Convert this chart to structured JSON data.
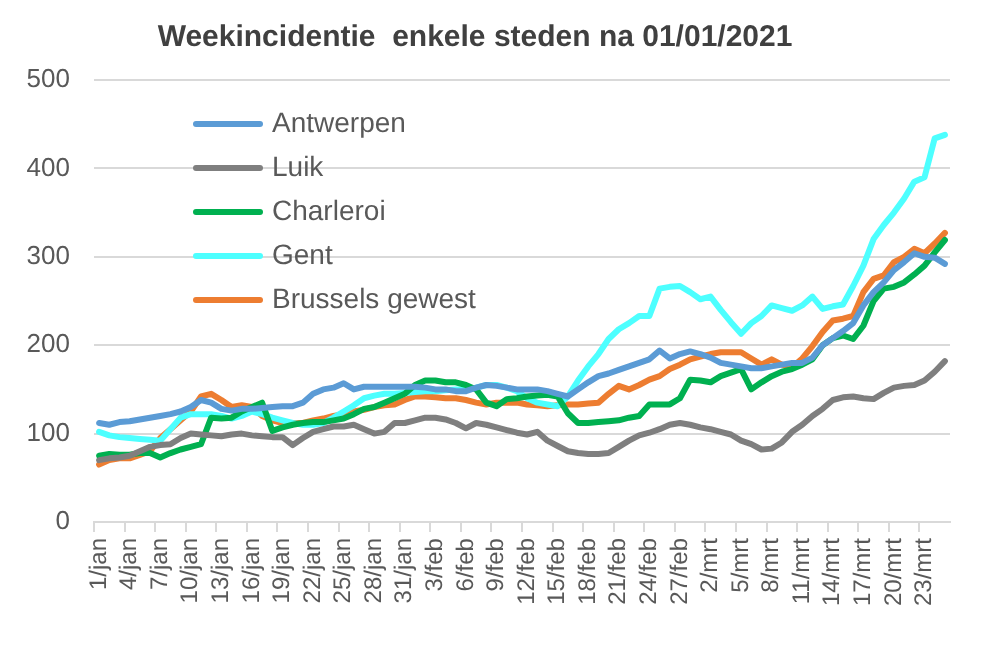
{
  "chart_data": {
    "type": "line",
    "title": "Weekincidentie  enkele steden na 01/01/2021",
    "categories": [
      "1/jan",
      null,
      null,
      "4/jan",
      null,
      null,
      "7/jan",
      null,
      null,
      "10/jan",
      null,
      null,
      "13/jan",
      null,
      null,
      "16/jan",
      null,
      null,
      "19/jan",
      null,
      null,
      "22/jan",
      null,
      null,
      "25/jan",
      null,
      null,
      "28/jan",
      null,
      null,
      "31/jan",
      null,
      null,
      "3/feb",
      null,
      null,
      "6/feb",
      null,
      null,
      "9/feb",
      null,
      null,
      "12/feb",
      null,
      null,
      "15/feb",
      null,
      null,
      "18/feb",
      null,
      null,
      "21/feb",
      null,
      null,
      "24/feb",
      null,
      null,
      "27/feb",
      null,
      null,
      "2/mrt",
      null,
      null,
      "5/mrt",
      null,
      null,
      "8/mrt",
      null,
      null,
      "11/mrt",
      null,
      null,
      "14/mrt",
      null,
      null,
      "17/mrt",
      null,
      null,
      "20/mrt",
      null,
      null,
      "23/mrt",
      null,
      null
    ],
    "series": [
      {
        "name": "Antwerpen",
        "color": "#5b9bd5",
        "values": [
          112,
          110,
          113,
          114,
          116,
          118,
          120,
          122,
          125,
          130,
          138,
          135,
          128,
          126,
          128,
          128,
          129,
          130,
          131,
          131,
          135,
          145,
          150,
          152,
          157,
          150,
          153,
          153,
          153,
          153,
          153,
          153,
          152,
          150,
          150,
          148,
          148,
          152,
          155,
          154,
          152,
          150,
          150,
          150,
          148,
          145,
          142,
          150,
          158,
          165,
          168,
          172,
          176,
          180,
          184,
          194,
          185,
          190,
          193,
          190,
          186,
          180,
          178,
          176,
          174,
          174,
          176,
          178,
          180,
          180,
          186,
          200,
          208,
          216,
          225,
          245,
          260,
          271,
          285,
          294,
          304,
          300,
          299,
          292
        ]
      },
      {
        "name": "Luik",
        "color": "#7f7f7f",
        "values": [
          70,
          72,
          73,
          75,
          80,
          85,
          87,
          88,
          95,
          100,
          99,
          98,
          97,
          99,
          100,
          98,
          97,
          96,
          96,
          87,
          95,
          102,
          105,
          108,
          108,
          110,
          105,
          100,
          102,
          112,
          112,
          115,
          118,
          118,
          116,
          112,
          106,
          112,
          110,
          107,
          104,
          101,
          99,
          102,
          92,
          86,
          80,
          78,
          77,
          77,
          78,
          85,
          92,
          98,
          101,
          105,
          110,
          112,
          110,
          107,
          105,
          102,
          99,
          92,
          88,
          82,
          83,
          90,
          102,
          110,
          120,
          128,
          138,
          141,
          142,
          140,
          139,
          146,
          152,
          154,
          155,
          160,
          170,
          182
        ]
      },
      {
        "name": "Charleroi",
        "color": "#00b050",
        "values": [
          75,
          77,
          76,
          76,
          78,
          78,
          73,
          78,
          82,
          85,
          88,
          118,
          117,
          118,
          125,
          130,
          135,
          103,
          107,
          110,
          112,
          113,
          113,
          115,
          117,
          122,
          128,
          130,
          135,
          140,
          145,
          155,
          160,
          160,
          158,
          158,
          155,
          150,
          135,
          131,
          139,
          140,
          142,
          143,
          144,
          142,
          123,
          112,
          112,
          113,
          114,
          115,
          118,
          120,
          133,
          133,
          133,
          140,
          161,
          160,
          158,
          165,
          169,
          173,
          150,
          158,
          165,
          170,
          173,
          178,
          184,
          200,
          208,
          211,
          207,
          222,
          250,
          264,
          266,
          271,
          280,
          290,
          305,
          319
        ]
      },
      {
        "name": "Gent",
        "color": "#4dffff",
        "values": [
          102,
          98,
          96,
          95,
          94,
          93,
          92,
          105,
          118,
          122,
          122,
          122,
          120,
          117,
          120,
          125,
          122,
          118,
          115,
          112,
          110,
          110,
          112,
          118,
          125,
          132,
          140,
          143,
          145,
          145,
          146,
          147,
          148,
          148,
          149,
          150,
          150,
          152,
          155,
          155,
          152,
          148,
          140,
          135,
          133,
          131,
          142,
          160,
          176,
          190,
          207,
          218,
          225,
          233,
          233,
          264,
          266,
          267,
          260,
          252,
          255,
          240,
          226,
          213,
          225,
          233,
          245,
          242,
          239,
          245,
          255,
          241,
          244,
          246,
          267,
          290,
          320,
          336,
          350,
          366,
          385,
          390,
          434,
          438
        ]
      },
      {
        "name": "Brussels gewest",
        "color": "#ed7d31",
        "values": [
          65,
          70,
          72,
          72,
          76,
          80,
          95,
          105,
          115,
          125,
          142,
          145,
          138,
          130,
          132,
          130,
          120,
          115,
          112,
          112,
          112,
          115,
          117,
          120,
          122,
          125,
          127,
          130,
          132,
          133,
          138,
          142,
          142,
          141,
          140,
          140,
          138,
          135,
          133,
          135,
          135,
          135,
          133,
          132,
          131,
          132,
          133,
          133,
          134,
          135,
          145,
          154,
          150,
          155,
          161,
          165,
          173,
          178,
          184,
          187,
          190,
          192,
          192,
          192,
          185,
          178,
          184,
          178,
          175,
          185,
          199,
          215,
          228,
          230,
          233,
          260,
          275,
          279,
          294,
          300,
          309,
          304,
          315,
          327
        ]
      }
    ],
    "ylim": [
      0,
      500
    ],
    "yticks": [
      0,
      100,
      200,
      300,
      400,
      500
    ],
    "grid": "y",
    "legend": "top left",
    "marker": "none",
    "line_style": "solid"
  }
}
